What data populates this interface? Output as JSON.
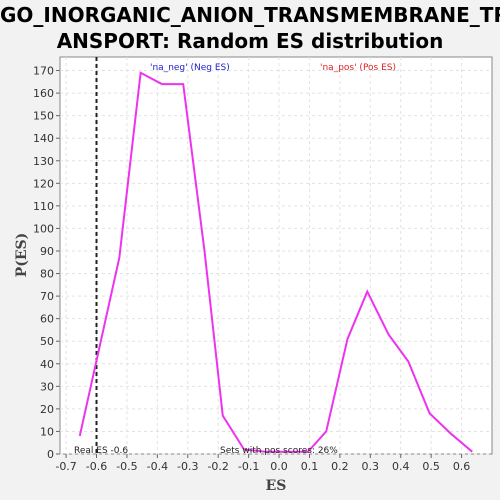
{
  "chart_data": {
    "type": "line",
    "title_line1": "GO_INORGANIC_ANION_TRANSMEMBRANE_TR",
    "title_line2": "ANSPORT: Random ES distribution",
    "xlabel": "ES",
    "ylabel": "P(ES)",
    "xlim": [
      -0.72,
      0.7
    ],
    "ylim": [
      0,
      176
    ],
    "xticks": [
      -0.7,
      -0.6,
      -0.5,
      -0.4,
      -0.3,
      -0.2,
      -0.1,
      0.0,
      0.1,
      0.2,
      0.3,
      0.4,
      0.5,
      0.6
    ],
    "xtick_labels": [
      "-0.7",
      "-0.6",
      "-0.5",
      "-0.4",
      "-0.3",
      "-0.2",
      "-0.1",
      "0.0",
      "0.1",
      "0.2",
      "0.3",
      "0.4",
      "0.5",
      "0.6"
    ],
    "yticks": [
      0,
      10,
      20,
      30,
      40,
      50,
      60,
      70,
      80,
      90,
      100,
      110,
      120,
      130,
      140,
      150,
      160,
      170
    ],
    "grid": true,
    "series": [
      {
        "color": "#ee33ee",
        "x": [
          -0.655,
          -0.525,
          -0.455,
          -0.385,
          -0.315,
          -0.245,
          -0.185,
          -0.115,
          -0.045,
          0.025,
          0.095,
          0.155,
          0.225,
          0.29,
          0.36,
          0.425,
          0.495,
          0.565,
          0.635
        ],
        "y": [
          8,
          87,
          169,
          164,
          164,
          90,
          17,
          2,
          1,
          1,
          1,
          10,
          51,
          72,
          53,
          41,
          18,
          9,
          1
        ]
      }
    ],
    "real_es": -0.6,
    "annotations": {
      "real_es": "Real ES -0.6",
      "pos_scores": "Sets with pos scores: 26%"
    },
    "legend": {
      "neg": "'na_neg' (Neg ES)",
      "pos": "'na_pos' (Pos ES)",
      "neg_color": "#2222cc",
      "pos_color": "#dd2222"
    }
  }
}
